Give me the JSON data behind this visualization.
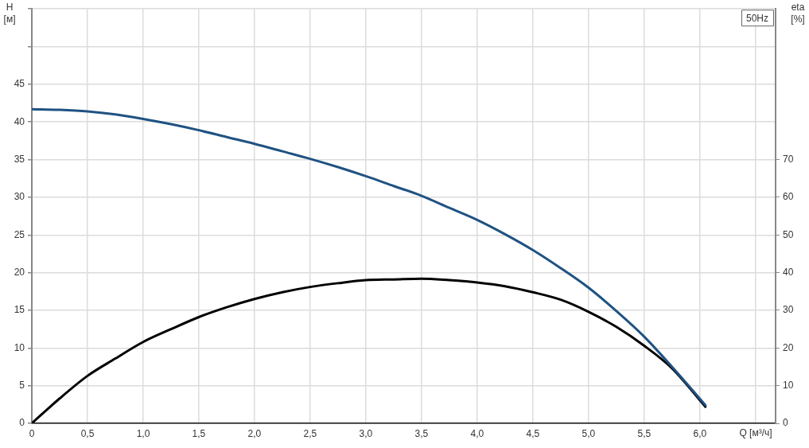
{
  "chart_data": {
    "type": "line",
    "xlabel": "Q [м³/ч]",
    "ylabel": "H [м]",
    "y2label": "eta [%]",
    "annotations": [
      "50Hz"
    ],
    "xlim": [
      0,
      6.68
    ],
    "xticks": [
      0,
      {
        "value": 0.5,
        "label": "0,5"
      },
      {
        "value": 1,
        "label": "1,0"
      },
      {
        "value": 1.5,
        "label": "1,5"
      },
      {
        "value": 2,
        "label": "2,0"
      },
      {
        "value": 2.5,
        "label": "2,5"
      },
      {
        "value": 3,
        "label": "3,0"
      },
      {
        "value": 3.5,
        "label": "3,5"
      },
      {
        "value": 4,
        "label": "4,0"
      },
      {
        "value": 4.5,
        "label": "4,5"
      },
      {
        "value": 5,
        "label": "5,0"
      },
      {
        "value": 5.5,
        "label": "5,5"
      },
      {
        "value": 6,
        "label": "6,0"
      },
      {
        "value": 6.5,
        "label": null
      }
    ],
    "ylim": [
      0,
      55
    ],
    "yticks": [
      0,
      5,
      10,
      15,
      20,
      25,
      30,
      35,
      40,
      45,
      {
        "value": 50,
        "label": null
      },
      {
        "value": 55,
        "label": null
      }
    ],
    "y2lim": [
      0,
      110
    ],
    "y2ticks": [
      0,
      10,
      20,
      30,
      40,
      50,
      60,
      70
    ],
    "grid": true,
    "legend": false,
    "marker": "none",
    "line_style": "solid",
    "series": [
      {
        "color": "#1f5282",
        "x": [
          0,
          0.25,
          0.5,
          0.75,
          1,
          1.25,
          1.5,
          1.75,
          2,
          2.25,
          2.5,
          2.75,
          3,
          3.25,
          3.5,
          3.75,
          4,
          4.25,
          4.5,
          4.75,
          5,
          5.25,
          5.5,
          5.75,
          6.05
        ],
        "values": [
          41.7,
          41.6,
          41.4,
          41,
          40.4,
          39.7,
          38.9,
          38,
          37.1,
          36.1,
          35.1,
          34,
          32.8,
          31.5,
          30.2,
          28.6,
          27,
          25.1,
          23,
          20.6,
          18,
          14.9,
          11.5,
          7.5,
          2.4
        ]
      },
      {
        "color": "#000000",
        "axis": "y2",
        "x": [
          0,
          0.25,
          0.5,
          0.75,
          1,
          1.25,
          1.5,
          1.75,
          2,
          2.25,
          2.5,
          2.75,
          3,
          3.25,
          3.5,
          3.75,
          4,
          4.25,
          4.5,
          4.75,
          5,
          5.25,
          5.5,
          5.75,
          6.05
        ],
        "values": [
          0,
          6.6,
          12.6,
          17.2,
          21.6,
          25,
          28.2,
          30.8,
          33,
          34.8,
          36.2,
          37.2,
          38,
          38.2,
          38.4,
          38,
          37.4,
          36.4,
          34.8,
          32.8,
          29.6,
          25.6,
          20.6,
          14.6,
          4.4
        ]
      }
    ]
  }
}
